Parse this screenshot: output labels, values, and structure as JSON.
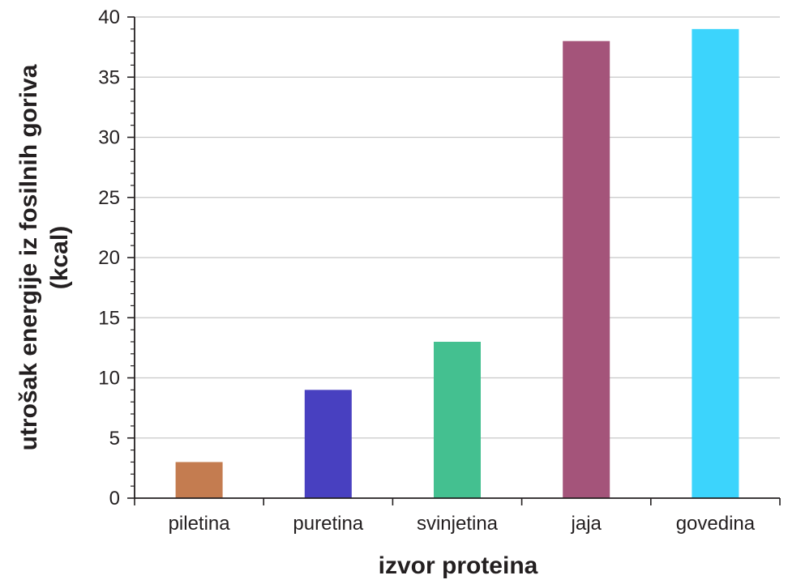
{
  "chart_data": {
    "type": "bar",
    "categories": [
      "piletina",
      "puretina",
      "svinjetina",
      "jaja",
      "govedina"
    ],
    "values": [
      3,
      9,
      13,
      38,
      39
    ],
    "colors": [
      "#c47c50",
      "#4840c0",
      "#44c090",
      "#a4547a",
      "#3cd4fc"
    ],
    "xlabel": "izvor proteina",
    "ylabel_line1": "utrošak energije iz fosilnih goriva",
    "ylabel_line2": "(kcal)",
    "ylim": [
      0,
      40
    ],
    "yticks": [
      "0",
      "5",
      "10",
      "15",
      "20",
      "25",
      "30",
      "35",
      "40"
    ],
    "grid": true,
    "legend": "none"
  }
}
